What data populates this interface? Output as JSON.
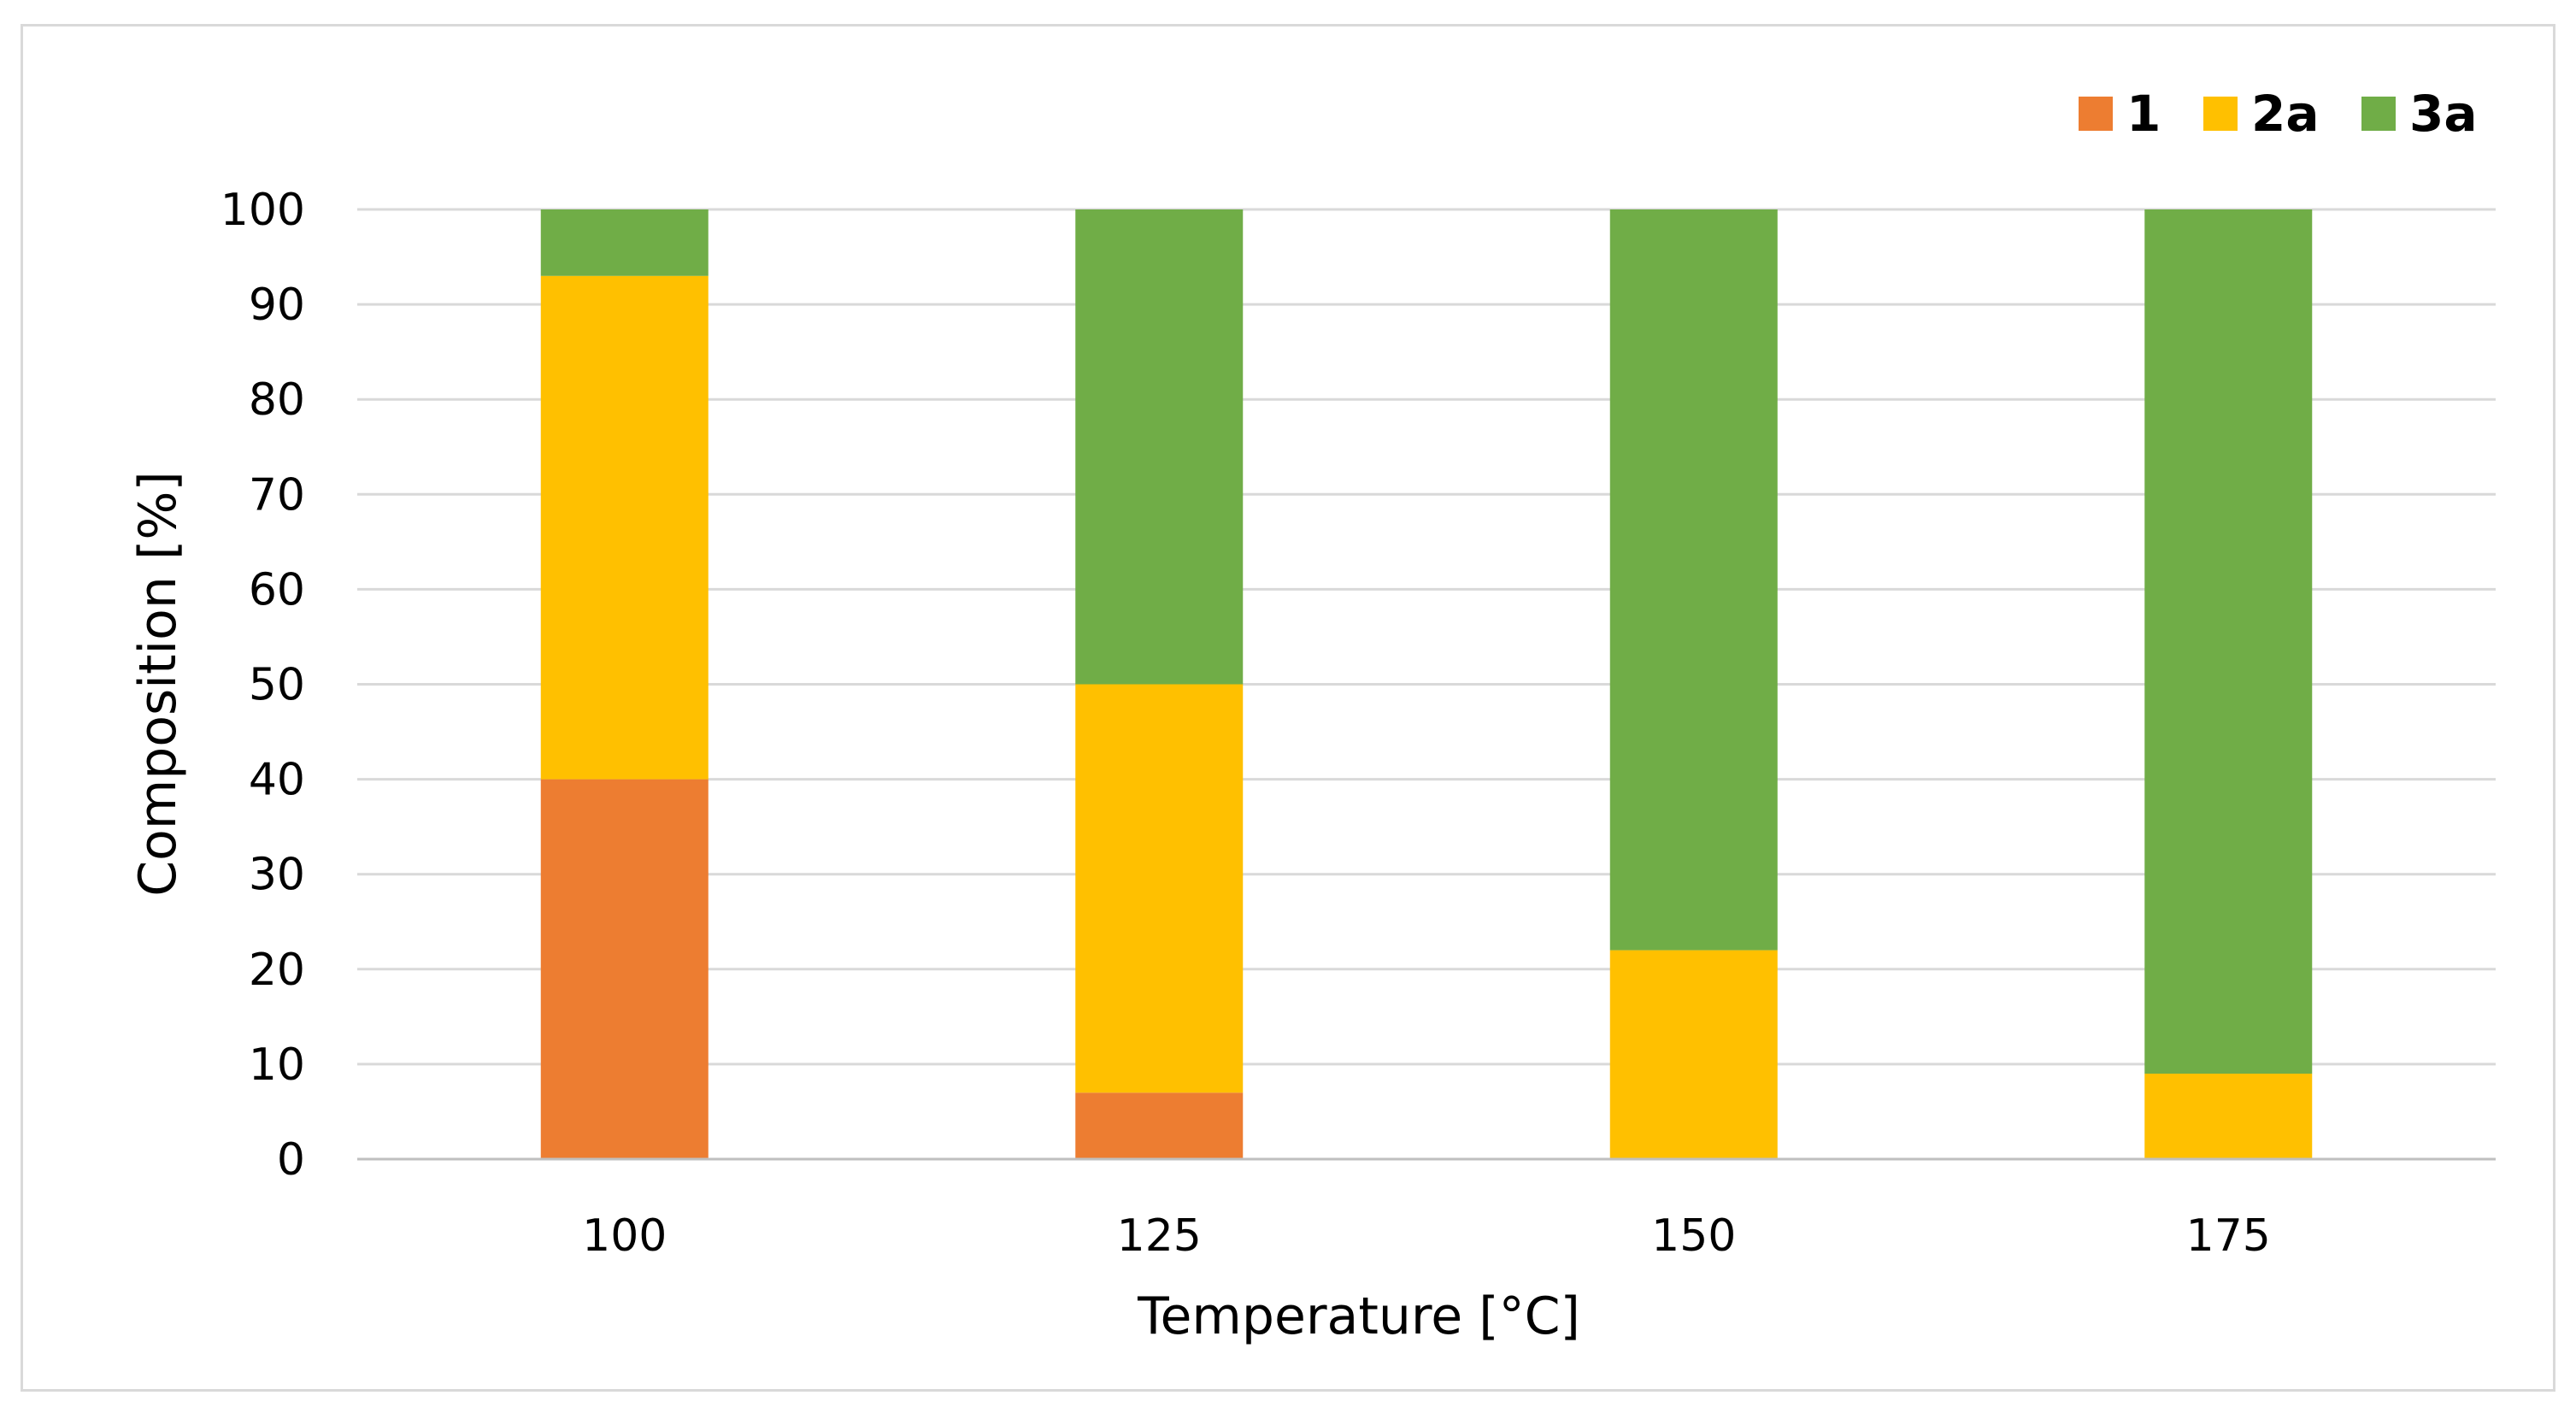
{
  "chart_data": {
    "type": "bar",
    "stacked": true,
    "title": "",
    "xlabel": "Temperature [°C]",
    "ylabel": "Composition [%]",
    "categories": [
      "100",
      "125",
      "150",
      "175"
    ],
    "ylim": [
      0,
      100
    ],
    "yticks": [
      0,
      10,
      20,
      30,
      40,
      50,
      60,
      70,
      80,
      90,
      100
    ],
    "grid": true,
    "legend_position": "top-right",
    "series": [
      {
        "name": "1",
        "color": "#ED7D31",
        "values": [
          40,
          7,
          0,
          0
        ]
      },
      {
        "name": "2a",
        "color": "#FFC000",
        "values": [
          53,
          43,
          22,
          9
        ]
      },
      {
        "name": "3a",
        "color": "#70AD47",
        "values": [
          7,
          50,
          78,
          91
        ]
      }
    ]
  }
}
